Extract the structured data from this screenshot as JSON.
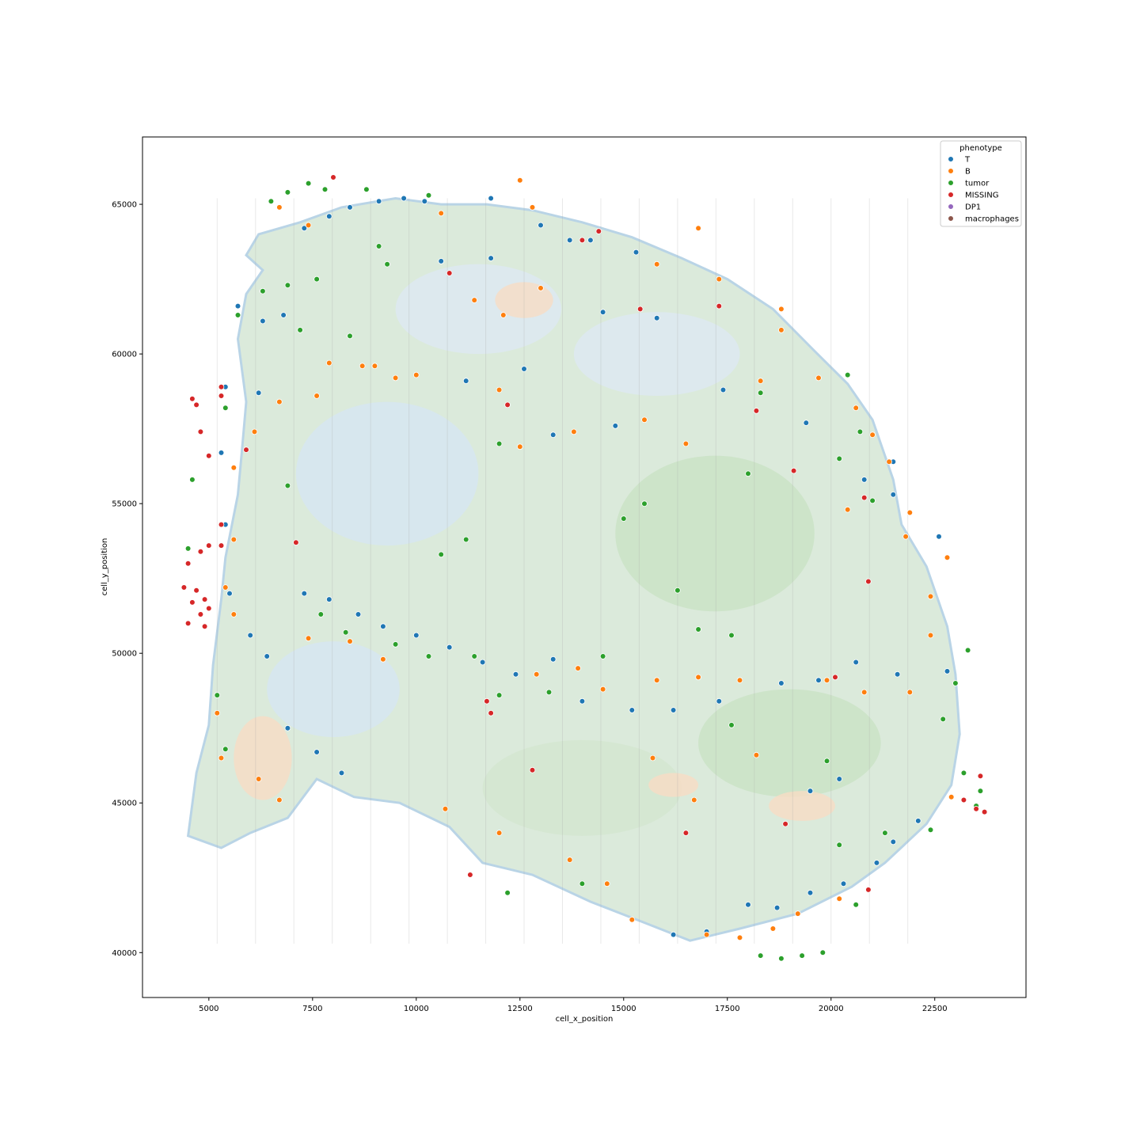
{
  "chart_data": {
    "type": "scatter",
    "xlabel": "cell_x_position",
    "ylabel": "cell_y_position",
    "xlim": [
      3400,
      24700
    ],
    "ylim": [
      38500,
      67250
    ],
    "xticks": [
      5000,
      7500,
      10000,
      12500,
      15000,
      17500,
      20000,
      22500
    ],
    "yticks": [
      40000,
      45000,
      50000,
      55000,
      60000,
      65000
    ],
    "grid": false,
    "legend": {
      "title": "phenotype",
      "placement": "top-right",
      "entries": [
        "T",
        "B",
        "tumor",
        "MISSING",
        "DP1",
        "macrophages"
      ]
    },
    "series": [
      {
        "name": "T",
        "color": "#1f77b4",
        "points": [
          [
            5700,
            61600
          ],
          [
            6300,
            61100
          ],
          [
            6800,
            61300
          ],
          [
            7300,
            64200
          ],
          [
            7900,
            64600
          ],
          [
            8400,
            64900
          ],
          [
            9100,
            65100
          ],
          [
            9700,
            65200
          ],
          [
            10200,
            65100
          ],
          [
            11800,
            65200
          ],
          [
            13000,
            64300
          ],
          [
            13700,
            63800
          ],
          [
            14200,
            63800
          ],
          [
            15300,
            63400
          ],
          [
            10600,
            63100
          ],
          [
            11800,
            63200
          ],
          [
            14500,
            61400
          ],
          [
            15800,
            61200
          ],
          [
            12600,
            59500
          ],
          [
            11200,
            59100
          ],
          [
            13300,
            57300
          ],
          [
            14800,
            57600
          ],
          [
            17400,
            58800
          ],
          [
            19400,
            57700
          ],
          [
            20800,
            55800
          ],
          [
            21500,
            55300
          ],
          [
            7300,
            52000
          ],
          [
            7900,
            51800
          ],
          [
            8600,
            51300
          ],
          [
            9200,
            50900
          ],
          [
            10000,
            50600
          ],
          [
            10800,
            50200
          ],
          [
            11600,
            49700
          ],
          [
            12400,
            49300
          ],
          [
            13300,
            49800
          ],
          [
            14000,
            48400
          ],
          [
            15200,
            48100
          ],
          [
            16200,
            48100
          ],
          [
            17300,
            48400
          ],
          [
            18800,
            49000
          ],
          [
            19700,
            49100
          ],
          [
            20600,
            49700
          ],
          [
            21600,
            49300
          ],
          [
            7600,
            46700
          ],
          [
            6900,
            47500
          ],
          [
            8200,
            46000
          ],
          [
            6000,
            50600
          ],
          [
            6400,
            49900
          ],
          [
            5500,
            52000
          ],
          [
            5400,
            54300
          ],
          [
            5300,
            56700
          ],
          [
            5400,
            58900
          ],
          [
            6200,
            58700
          ],
          [
            16200,
            40600
          ],
          [
            17000,
            40700
          ],
          [
            18000,
            41600
          ],
          [
            18700,
            41500
          ],
          [
            19500,
            42000
          ],
          [
            20300,
            42300
          ],
          [
            21100,
            43000
          ],
          [
            21500,
            43700
          ],
          [
            22100,
            44400
          ],
          [
            22800,
            49400
          ],
          [
            19500,
            45400
          ],
          [
            20200,
            45800
          ],
          [
            22600,
            53900
          ],
          [
            21500,
            56400
          ]
        ]
      },
      {
        "name": "B",
        "color": "#ff7f0e",
        "points": [
          [
            6700,
            64900
          ],
          [
            7400,
            64300
          ],
          [
            9000,
            59600
          ],
          [
            7900,
            59700
          ],
          [
            8700,
            59600
          ],
          [
            9500,
            59200
          ],
          [
            6700,
            58400
          ],
          [
            7600,
            58600
          ],
          [
            10000,
            59300
          ],
          [
            12000,
            58800
          ],
          [
            12500,
            56900
          ],
          [
            13800,
            57400
          ],
          [
            15500,
            57800
          ],
          [
            16500,
            57000
          ],
          [
            18300,
            59100
          ],
          [
            18800,
            60800
          ],
          [
            19700,
            59200
          ],
          [
            20600,
            58200
          ],
          [
            21000,
            57300
          ],
          [
            21400,
            56400
          ],
          [
            21900,
            54700
          ],
          [
            20400,
            54800
          ],
          [
            17300,
            62500
          ],
          [
            18800,
            61500
          ],
          [
            16800,
            64200
          ],
          [
            15800,
            63000
          ],
          [
            12100,
            61300
          ],
          [
            11400,
            61800
          ],
          [
            13000,
            62200
          ],
          [
            12500,
            65800
          ],
          [
            12800,
            64900
          ],
          [
            10600,
            64700
          ],
          [
            5600,
            56200
          ],
          [
            6100,
            57400
          ],
          [
            5600,
            53800
          ],
          [
            5400,
            52200
          ],
          [
            5600,
            51300
          ],
          [
            5200,
            48000
          ],
          [
            5300,
            46500
          ],
          [
            6200,
            45800
          ],
          [
            6700,
            45100
          ],
          [
            7400,
            50500
          ],
          [
            8400,
            50400
          ],
          [
            9200,
            49800
          ],
          [
            12900,
            49300
          ],
          [
            13900,
            49500
          ],
          [
            14500,
            48800
          ],
          [
            15800,
            49100
          ],
          [
            16800,
            49200
          ],
          [
            17800,
            49100
          ],
          [
            18200,
            46600
          ],
          [
            19900,
            49100
          ],
          [
            20800,
            48700
          ],
          [
            21900,
            48700
          ],
          [
            22400,
            50600
          ],
          [
            22800,
            53200
          ],
          [
            21800,
            53900
          ],
          [
            22400,
            51900
          ],
          [
            22900,
            45200
          ],
          [
            17000,
            40600
          ],
          [
            17800,
            40500
          ],
          [
            18600,
            40800
          ],
          [
            19200,
            41300
          ],
          [
            20200,
            41800
          ],
          [
            15200,
            41100
          ],
          [
            14600,
            42300
          ],
          [
            13700,
            43100
          ],
          [
            12000,
            44000
          ],
          [
            10700,
            44800
          ],
          [
            16700,
            45100
          ],
          [
            15700,
            46500
          ]
        ]
      },
      {
        "name": "tumor",
        "color": "#2ca02c",
        "points": [
          [
            6900,
            62300
          ],
          [
            7600,
            62500
          ],
          [
            8400,
            60600
          ],
          [
            7200,
            60800
          ],
          [
            7800,
            65500
          ],
          [
            6900,
            65400
          ],
          [
            8800,
            65500
          ],
          [
            7400,
            65700
          ],
          [
            6500,
            65100
          ],
          [
            10300,
            65300
          ],
          [
            9300,
            63000
          ],
          [
            9100,
            63600
          ],
          [
            12000,
            57000
          ],
          [
            10600,
            53300
          ],
          [
            11200,
            53800
          ],
          [
            15000,
            54500
          ],
          [
            16800,
            50800
          ],
          [
            17600,
            50600
          ],
          [
            15500,
            55000
          ],
          [
            18000,
            56000
          ],
          [
            16300,
            52100
          ],
          [
            20200,
            56500
          ],
          [
            21000,
            55100
          ],
          [
            20400,
            59300
          ],
          [
            18300,
            58700
          ],
          [
            20700,
            57400
          ],
          [
            9500,
            50300
          ],
          [
            10300,
            49900
          ],
          [
            11400,
            49900
          ],
          [
            12000,
            48600
          ],
          [
            13200,
            48700
          ],
          [
            14500,
            49900
          ],
          [
            17600,
            47600
          ],
          [
            19900,
            46400
          ],
          [
            22700,
            47800
          ],
          [
            23000,
            49000
          ],
          [
            23300,
            50100
          ],
          [
            23200,
            46000
          ],
          [
            23600,
            45400
          ],
          [
            23500,
            44900
          ],
          [
            22400,
            44100
          ],
          [
            21300,
            44000
          ],
          [
            20200,
            43600
          ],
          [
            19800,
            40000
          ],
          [
            18300,
            39900
          ],
          [
            18800,
            39800
          ],
          [
            19300,
            39900
          ],
          [
            5200,
            48600
          ],
          [
            5400,
            46800
          ],
          [
            4500,
            53500
          ],
          [
            4600,
            55800
          ],
          [
            5400,
            58200
          ],
          [
            5700,
            61300
          ],
          [
            6300,
            62100
          ],
          [
            6900,
            55600
          ],
          [
            7700,
            51300
          ],
          [
            8300,
            50700
          ],
          [
            12200,
            42000
          ],
          [
            14000,
            42300
          ],
          [
            20600,
            41600
          ]
        ]
      },
      {
        "name": "MISSING",
        "color": "#d62728",
        "points": [
          [
            4600,
            58500
          ],
          [
            4700,
            58300
          ],
          [
            4800,
            57400
          ],
          [
            5000,
            56600
          ],
          [
            5300,
            58900
          ],
          [
            5300,
            58600
          ],
          [
            5900,
            56800
          ],
          [
            4400,
            52200
          ],
          [
            4500,
            51000
          ],
          [
            4600,
            51700
          ],
          [
            4700,
            52100
          ],
          [
            4800,
            51300
          ],
          [
            4900,
            51800
          ],
          [
            4900,
            50900
          ],
          [
            5000,
            51500
          ],
          [
            4500,
            53000
          ],
          [
            4800,
            53400
          ],
          [
            5000,
            53600
          ],
          [
            5300,
            53600
          ],
          [
            5300,
            54300
          ],
          [
            7100,
            53700
          ],
          [
            10800,
            62700
          ],
          [
            12200,
            58300
          ],
          [
            14000,
            63800
          ],
          [
            15400,
            61500
          ],
          [
            17300,
            61600
          ],
          [
            18200,
            58100
          ],
          [
            19100,
            56100
          ],
          [
            20800,
            55200
          ],
          [
            20900,
            52400
          ],
          [
            20100,
            49200
          ],
          [
            12800,
            46100
          ],
          [
            11700,
            48400
          ],
          [
            11800,
            48000
          ],
          [
            11300,
            42600
          ],
          [
            16500,
            44000
          ],
          [
            18900,
            44300
          ],
          [
            20900,
            42100
          ],
          [
            23200,
            45100
          ],
          [
            23600,
            45900
          ],
          [
            23500,
            44800
          ],
          [
            23700,
            44700
          ],
          [
            8000,
            65900
          ],
          [
            14400,
            64100
          ]
        ]
      },
      {
        "name": "DP1",
        "color": "#9467bd",
        "points": []
      },
      {
        "name": "macrophages",
        "color": "#8c564b",
        "points": []
      }
    ]
  }
}
